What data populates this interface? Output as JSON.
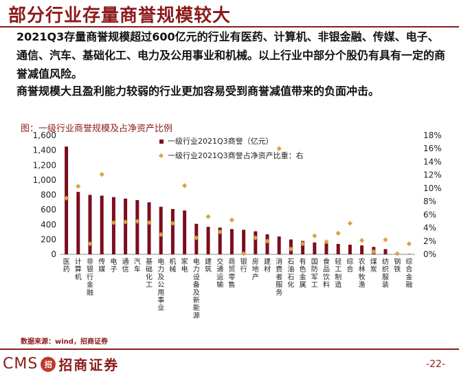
{
  "header": {
    "title": "部分行业存量商誉规模较大"
  },
  "text": {
    "p1": "2021Q3存量商誉规模超过600亿元的行业有医药、计算机、非银金融、传媒、电子、通信、汽车、基础化工、电力及公用事业和机械。以上行业中部分个股仍有具有一定的商誉减值风险。",
    "p2": "商誉规模大且盈利能力较弱的行业更加容易受到商誉减值带来的负面冲击。"
  },
  "figure": {
    "title": "图：一级行业商誉规模及占净资产比例",
    "source": "数据来源：wind，招商证券"
  },
  "footer": {
    "logo_text": "CMS",
    "logo_badge": "招",
    "logo_cn": "招商证券",
    "page": "-22-"
  },
  "colors": {
    "bar": "#7b0d1e",
    "dot": "#d4a847",
    "brand": "#8b1a1a"
  },
  "chart_data": {
    "type": "bar",
    "categories": [
      "医药",
      "计算机",
      "非银行金融",
      "传媒",
      "电子",
      "通信",
      "汽车",
      "基础化工",
      "电力及公用事业",
      "机械",
      "家电",
      "电力设备及新能源",
      "建筑",
      "交通运输",
      "商贸零售",
      "银行",
      "房地产",
      "建材",
      "消费者服务",
      "石油石化",
      "有色金属",
      "国防军工",
      "食品饮料",
      "轻工制造",
      "综合",
      "农林牧渔",
      "煤炭",
      "纺织服装",
      "钢铁",
      "综合金融"
    ],
    "series": [
      {
        "name": "一级行业2021Q3商誉（亿元）",
        "axis": "left",
        "values": [
          1450,
          840,
          800,
          790,
          770,
          750,
          730,
          700,
          640,
          610,
          590,
          410,
          370,
          360,
          340,
          330,
          310,
          270,
          240,
          200,
          180,
          160,
          150,
          140,
          130,
          120,
          100,
          70,
          20,
          5
        ]
      },
      {
        "name": "一级行业2021Q3商誉占净资产比重：右",
        "axis": "right",
        "values": [
          8.5,
          10.3,
          1.6,
          12.1,
          4.8,
          4.9,
          5.0,
          4.8,
          3.0,
          4.7,
          10.4,
          2.5,
          5.7,
          3.4,
          5.2,
          0.1,
          2.5,
          2.0,
          16.0,
          0.8,
          1.6,
          2.8,
          1.9,
          3.2,
          4.7,
          2.1,
          0.4,
          2.2,
          0.1,
          1.6
        ]
      }
    ],
    "ylim_left": [
      0,
      1600
    ],
    "ylim_right": [
      0,
      18
    ],
    "yticks_left": [
      "0",
      "200",
      "400",
      "600",
      "800",
      "1,000",
      "1,200",
      "1,400",
      "1,600"
    ],
    "yticks_right": [
      "0%",
      "2%",
      "4%",
      "6%",
      "8%",
      "10%",
      "12%",
      "14%",
      "16%",
      "18%"
    ],
    "legend_position": "top-center"
  }
}
